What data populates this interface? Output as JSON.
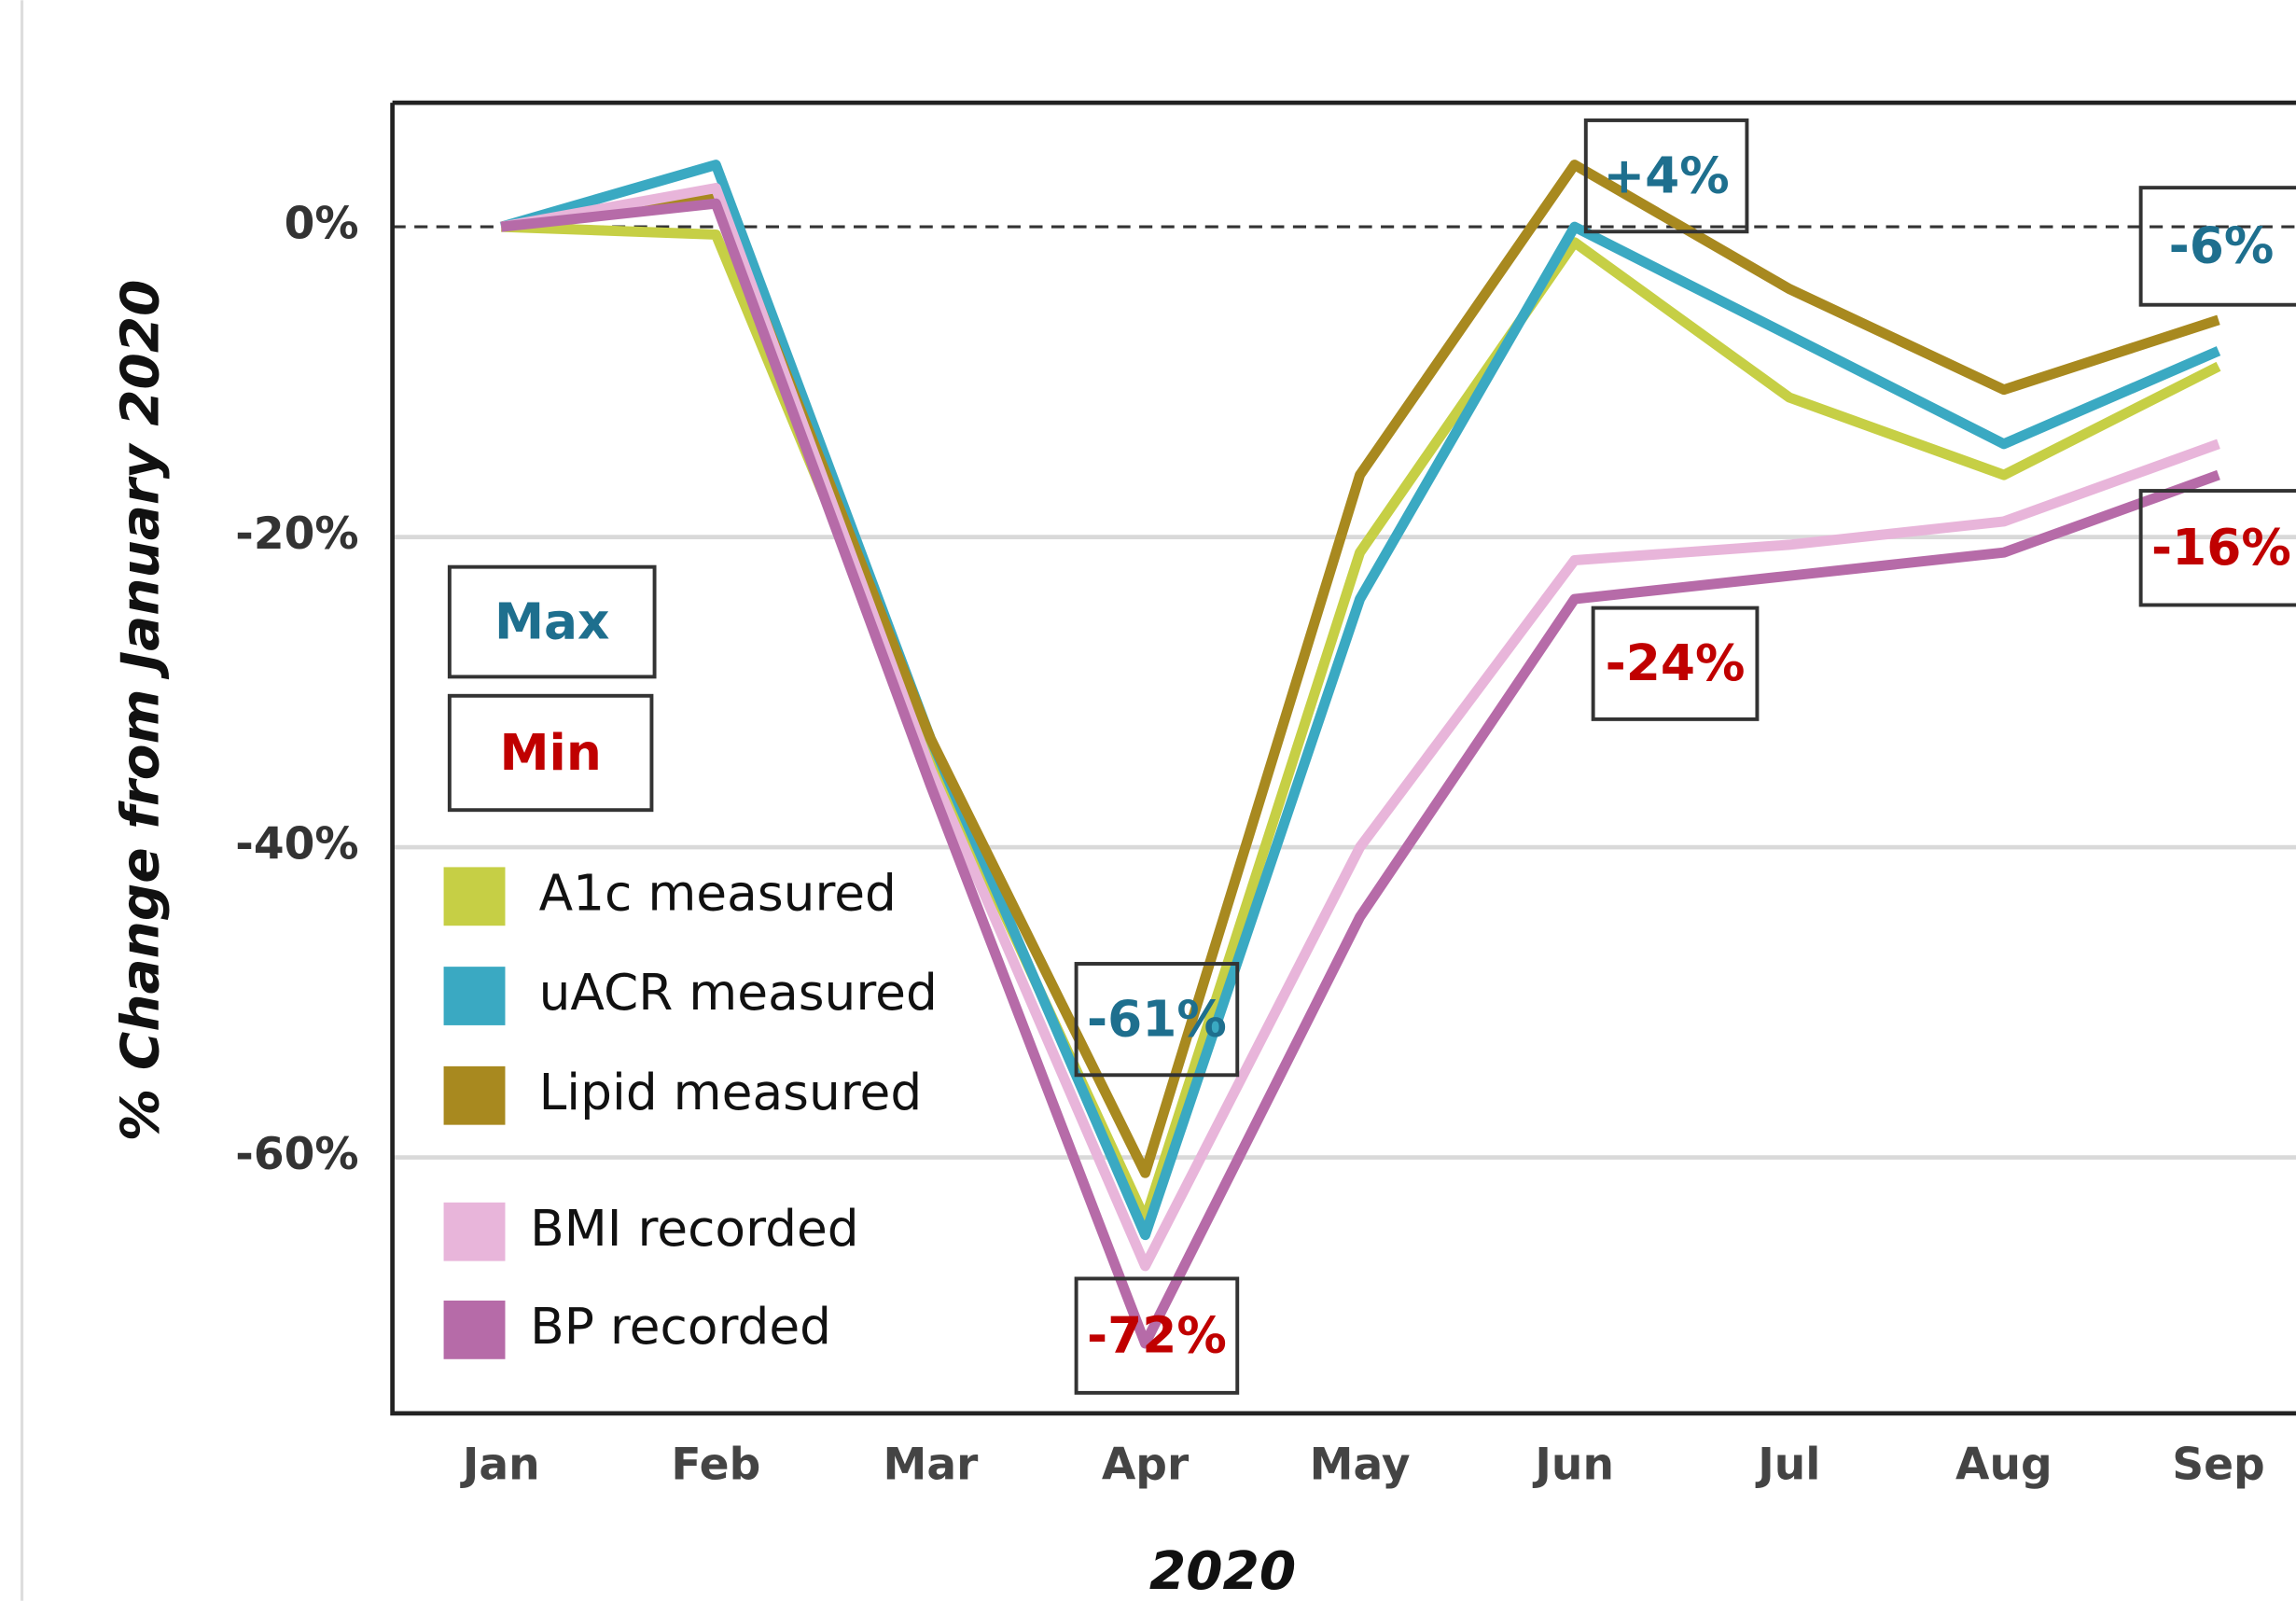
{
  "chart_data": {
    "type": "line",
    "y_label": "% Change from January 2020",
    "x_label": "2020",
    "categories": [
      "Jan",
      "Feb",
      "Mar",
      "Apr",
      "May",
      "Jun",
      "Jul",
      "Aug",
      "Sep"
    ],
    "series": [
      {
        "name": "A1c measured",
        "color": "#c6cf45",
        "values": [
          0,
          -0.5,
          -34,
          -64,
          -21,
          -1,
          -11,
          -16,
          -9
        ]
      },
      {
        "name": "uACR measured",
        "color": "#3aa9c2",
        "values": [
          0,
          4,
          -33,
          -65,
          -24,
          0,
          -7,
          -14,
          -8
        ]
      },
      {
        "name": "Lipid measured",
        "color": "#a8891f",
        "values": [
          0,
          2,
          -33,
          -61,
          -16,
          4,
          -4,
          -10.5,
          -6
        ]
      },
      {
        "name": "BMI recorded",
        "color": "#e8b5da",
        "values": [
          0,
          2.5,
          -35,
          -67,
          -40,
          -21.5,
          -20.5,
          -19,
          -14
        ]
      },
      {
        "name": "BP recorded",
        "color": "#b66ba8",
        "values": [
          0,
          1.5,
          -36,
          -72,
          -44.5,
          -24,
          -22.5,
          -21,
          -16
        ]
      }
    ],
    "ylim": [
      -76.5,
      8
    ],
    "yticks": [
      {
        "value": 0,
        "label": "0%"
      },
      {
        "value": -20,
        "label": "-20%"
      },
      {
        "value": -40,
        "label": "-40%"
      },
      {
        "value": -60,
        "label": "-60%"
      }
    ],
    "grid": true,
    "annotations": [
      {
        "text": "Max",
        "color": "#1e6f8e"
      },
      {
        "text": "Min",
        "color": "#c00000"
      },
      {
        "text": "+4%",
        "color": "#1e6f8e"
      },
      {
        "text": "-6%",
        "color": "#1e6f8e"
      },
      {
        "text": "-61%",
        "color": "#1e6f8e"
      },
      {
        "text": "-72%",
        "color": "#c00000"
      },
      {
        "text": "-24%",
        "color": "#c00000"
      },
      {
        "text": "-16%",
        "color": "#c00000"
      }
    ]
  }
}
